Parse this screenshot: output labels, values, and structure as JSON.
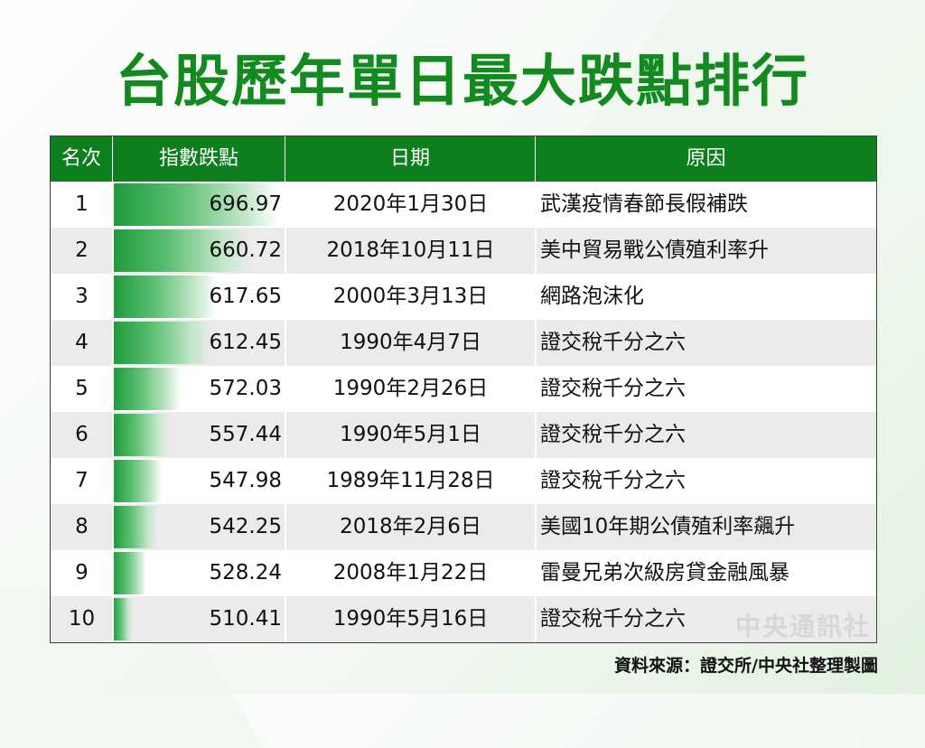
{
  "title": "台股歷年單日最大跌點排行",
  "source": "資料來源：證交所/中央社整理製圖",
  "watermark": "中央通訊社",
  "colors": {
    "title": "#138a1f",
    "header_bg": "#0d7f1c",
    "bar": "#1d9a3a"
  },
  "headers": {
    "rank": "名次",
    "points": "指數跌點",
    "date": "日期",
    "reason": "原因"
  },
  "chart_data": {
    "type": "table",
    "title": "台股歷年單日最大跌點排行",
    "columns": [
      "名次",
      "指數跌點",
      "日期",
      "原因"
    ],
    "rows": [
      {
        "rank": "1",
        "points": "696.97",
        "date": "2020年1月30日",
        "reason": "武漢疫情春節長假補跌"
      },
      {
        "rank": "2",
        "points": "660.72",
        "date": "2018年10月11日",
        "reason": "美中貿易戰公債殖利率升"
      },
      {
        "rank": "3",
        "points": "617.65",
        "date": "2000年3月13日",
        "reason": "網路泡沫化"
      },
      {
        "rank": "4",
        "points": "612.45",
        "date": "1990年4月7日",
        "reason": "證交稅千分之六"
      },
      {
        "rank": "5",
        "points": "572.03",
        "date": "1990年2月26日",
        "reason": "證交稅千分之六"
      },
      {
        "rank": "6",
        "points": "557.44",
        "date": "1990年5月1日",
        "reason": "證交稅千分之六"
      },
      {
        "rank": "7",
        "points": "547.98",
        "date": "1989年11月28日",
        "reason": "證交稅千分之六"
      },
      {
        "rank": "8",
        "points": "542.25",
        "date": "2018年2月6日",
        "reason": "美國10年期公債殖利率飆升"
      },
      {
        "rank": "9",
        "points": "528.24",
        "date": "2008年1月22日",
        "reason": "雷曼兄弟次級房貸金融風暴"
      },
      {
        "rank": "10",
        "points": "510.41",
        "date": "1990年5月16日",
        "reason": "證交稅千分之六"
      }
    ]
  }
}
